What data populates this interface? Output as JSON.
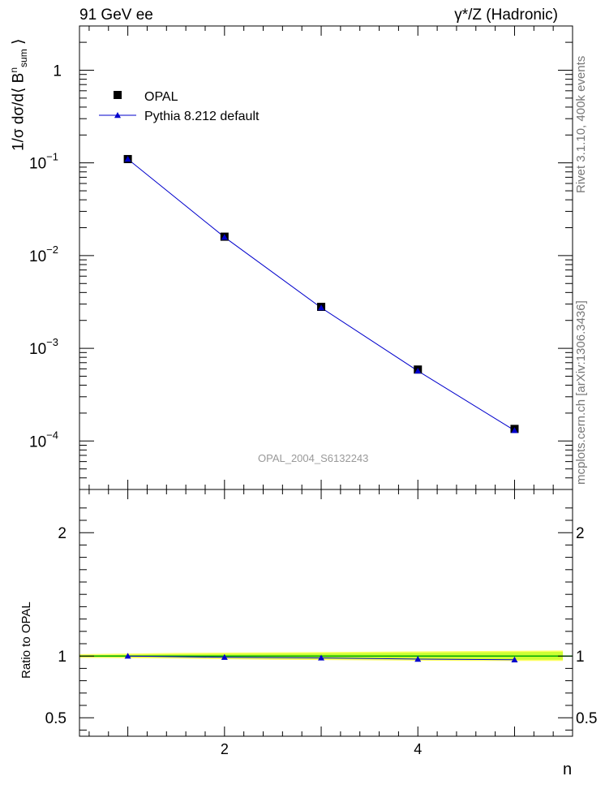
{
  "header": {
    "left_title": "91 GeV ee",
    "right_title": "γ*/Z (Hadronic)"
  },
  "side_labels": {
    "rivet": "Rivet 3.1.10,  400k events",
    "mcplots": "mcplots.cern.ch [arXiv:1306.3436]"
  },
  "colors": {
    "data": "#000000",
    "mc": "#0000cc",
    "band_inner": "#ccff33",
    "band_outer": "#ffff66",
    "ref_line": "#00aa00"
  },
  "chart_data": [
    {
      "type": "scatter",
      "panel": "main",
      "title": "",
      "xlabel": "n",
      "ylabel": "1/σ dσ/d⟨ B^n_sum ⟩",
      "yscale": "log",
      "xlim": [
        0.5,
        5.6
      ],
      "ylim": [
        3e-05,
        3
      ],
      "y_ticks": [
        {
          "value": 1,
          "base": "1",
          "exp": ""
        },
        {
          "value": 0.1,
          "base": "10",
          "exp": "−1"
        },
        {
          "value": 0.01,
          "base": "10",
          "exp": "−2"
        },
        {
          "value": 0.001,
          "base": "10",
          "exp": "−3"
        },
        {
          "value": 0.0001,
          "base": "10",
          "exp": "−4"
        }
      ],
      "watermark": "OPAL_2004_S6132243",
      "legend": {
        "position": "top-left",
        "entries": [
          {
            "label": "OPAL",
            "marker": "square"
          },
          {
            "label": "Pythia 8.212 default",
            "marker": "triangle-line"
          }
        ]
      },
      "series": [
        {
          "name": "OPAL",
          "x": [
            1,
            2,
            3,
            4,
            5
          ],
          "values": [
            0.11,
            0.016,
            0.0028,
            0.00059,
            0.000135
          ]
        },
        {
          "name": "Pythia 8.212 default",
          "x": [
            1,
            2,
            3,
            4,
            5
          ],
          "values": [
            0.11,
            0.0158,
            0.00274,
            0.00057,
            0.00013
          ]
        }
      ]
    },
    {
      "type": "line",
      "panel": "ratio",
      "xlabel": "n",
      "ylabel": "Ratio to OPAL",
      "xlim": [
        0.5,
        5.6
      ],
      "ylim": [
        0.35,
        2.35
      ],
      "x_ticks": [
        {
          "value": 2,
          "label": "2"
        },
        {
          "value": 4,
          "label": "4"
        }
      ],
      "y_ticks": [
        {
          "value": 0.5,
          "label": "0.5"
        },
        {
          "value": 1,
          "label": "1"
        },
        {
          "value": 2,
          "label": "2"
        }
      ],
      "band": {
        "x": [
          0.5,
          1.5,
          2.5,
          3.5,
          4.5,
          5.5
        ],
        "lo": [
          0.995,
          0.99,
          0.98,
          0.975,
          0.97,
          0.97
        ],
        "hi": [
          1.005,
          1.015,
          1.02,
          1.025,
          1.03,
          1.035
        ]
      },
      "series": [
        {
          "name": "Pythia 8.212 default",
          "x": [
            1,
            2,
            3,
            4,
            5
          ],
          "values": [
            1.0,
            0.99,
            0.985,
            0.975,
            0.97
          ]
        }
      ]
    }
  ]
}
